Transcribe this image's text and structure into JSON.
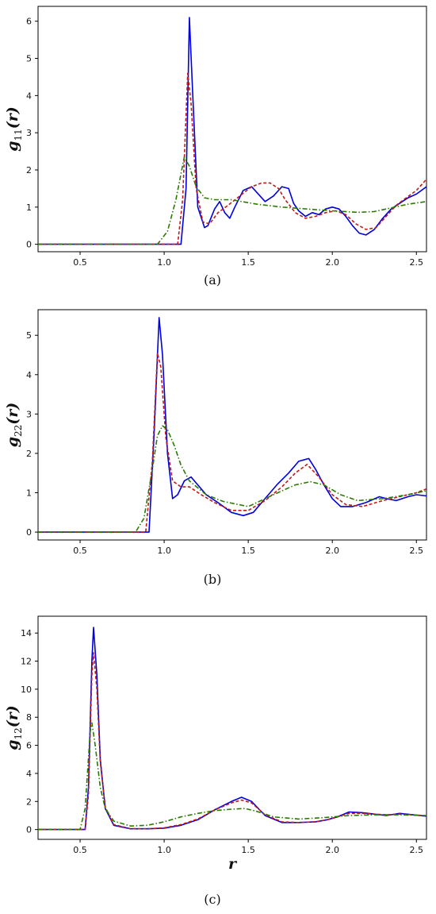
{
  "chart_data": [
    {
      "type": "line",
      "panel_label": "(a)",
      "ylabel": "g11(r)",
      "ylabel_main": "g",
      "ylabel_sub": "11",
      "ylabel_tail": "(r)",
      "xlabel": "",
      "xlim": [
        0.25,
        2.56
      ],
      "ylim": [
        -0.2,
        6.4
      ],
      "xticks": [
        0.5,
        1.0,
        1.5,
        2.0,
        2.5
      ],
      "xtick_labels": [
        "0.5",
        "1.0",
        "1.5",
        "2.0",
        "2.5"
      ],
      "yticks": [
        0,
        1,
        2,
        3,
        4,
        5,
        6
      ],
      "ytick_labels": [
        "0",
        "1",
        "2",
        "3",
        "4",
        "5",
        "6"
      ],
      "grid": false,
      "series": [
        {
          "color": "#0000dd",
          "dash": "solid",
          "x": [
            0.25,
            1.1,
            1.13,
            1.15,
            1.17,
            1.2,
            1.24,
            1.26,
            1.3,
            1.33,
            1.36,
            1.39,
            1.42,
            1.47,
            1.52,
            1.56,
            1.6,
            1.65,
            1.7,
            1.74,
            1.77,
            1.8,
            1.84,
            1.88,
            1.92,
            1.96,
            2.0,
            2.04,
            2.08,
            2.12,
            2.16,
            2.2,
            2.25,
            2.3,
            2.35,
            2.4,
            2.45,
            2.5,
            2.56
          ],
          "y": [
            0,
            0,
            1.5,
            6.1,
            4.0,
            1.0,
            0.45,
            0.5,
            0.95,
            1.15,
            0.85,
            0.7,
            1.0,
            1.45,
            1.55,
            1.35,
            1.15,
            1.3,
            1.55,
            1.5,
            1.1,
            0.9,
            0.75,
            0.85,
            0.8,
            0.95,
            1.0,
            0.95,
            0.75,
            0.5,
            0.3,
            0.25,
            0.4,
            0.7,
            0.95,
            1.1,
            1.25,
            1.35,
            1.55
          ]
        },
        {
          "color": "#c01a1a",
          "dash": "dashed",
          "x": [
            0.25,
            1.08,
            1.11,
            1.14,
            1.16,
            1.19,
            1.23,
            1.27,
            1.32,
            1.38,
            1.45,
            1.52,
            1.58,
            1.63,
            1.68,
            1.72,
            1.78,
            1.84,
            1.9,
            1.96,
            2.02,
            2.08,
            2.14,
            2.2,
            2.26,
            2.32,
            2.38,
            2.44,
            2.5,
            2.56
          ],
          "y": [
            0,
            0,
            1.2,
            4.6,
            3.8,
            1.5,
            0.6,
            0.55,
            0.85,
            1.05,
            1.3,
            1.55,
            1.65,
            1.65,
            1.5,
            1.2,
            0.85,
            0.7,
            0.75,
            0.85,
            0.9,
            0.8,
            0.55,
            0.4,
            0.45,
            0.75,
            1.05,
            1.25,
            1.45,
            1.75
          ]
        },
        {
          "color": "#2a7a00",
          "dash": "dashdot",
          "x": [
            0.25,
            0.96,
            1.02,
            1.07,
            1.12,
            1.15,
            1.19,
            1.24,
            1.3,
            1.4,
            1.55,
            1.7,
            1.85,
            2.0,
            2.15,
            2.25,
            2.35,
            2.45,
            2.56
          ],
          "y": [
            0,
            0,
            0.35,
            1.2,
            2.35,
            2.1,
            1.55,
            1.25,
            1.2,
            1.2,
            1.08,
            1.0,
            0.95,
            0.9,
            0.86,
            0.88,
            0.98,
            1.08,
            1.15
          ]
        }
      ]
    },
    {
      "type": "line",
      "panel_label": "(b)",
      "ylabel": "g22(r)",
      "ylabel_main": "g",
      "ylabel_sub": "22",
      "ylabel_tail": "(r)",
      "xlabel": "",
      "xlim": [
        0.25,
        2.56
      ],
      "ylim": [
        -0.2,
        5.65
      ],
      "xticks": [
        0.5,
        1.0,
        1.5,
        2.0,
        2.5
      ],
      "xtick_labels": [
        "0.5",
        "1.0",
        "1.5",
        "2.0",
        "2.5"
      ],
      "yticks": [
        0,
        1,
        2,
        3,
        4,
        5
      ],
      "ytick_labels": [
        "0",
        "1",
        "2",
        "3",
        "4",
        "5"
      ],
      "grid": false,
      "series": [
        {
          "color": "#0000dd",
          "dash": "solid",
          "x": [
            0.25,
            0.91,
            0.94,
            0.97,
            0.99,
            1.02,
            1.05,
            1.08,
            1.12,
            1.16,
            1.2,
            1.25,
            1.32,
            1.4,
            1.47,
            1.53,
            1.6,
            1.67,
            1.74,
            1.8,
            1.86,
            1.9,
            1.95,
            2.0,
            2.05,
            2.12,
            2.2,
            2.28,
            2.32,
            2.38,
            2.45,
            2.5,
            2.56
          ],
          "y": [
            0,
            0,
            2.5,
            5.45,
            4.5,
            2.0,
            0.85,
            0.95,
            1.3,
            1.4,
            1.2,
            0.95,
            0.75,
            0.5,
            0.42,
            0.5,
            0.85,
            1.2,
            1.5,
            1.8,
            1.87,
            1.6,
            1.2,
            0.85,
            0.65,
            0.65,
            0.75,
            0.9,
            0.85,
            0.8,
            0.9,
            0.95,
            0.92
          ]
        },
        {
          "color": "#c01a1a",
          "dash": "dashed",
          "x": [
            0.25,
            0.89,
            0.93,
            0.96,
            0.98,
            1.01,
            1.05,
            1.1,
            1.15,
            1.22,
            1.3,
            1.4,
            1.5,
            1.6,
            1.7,
            1.78,
            1.85,
            1.92,
            2.0,
            2.08,
            2.18,
            2.3,
            2.4,
            2.5,
            2.56
          ],
          "y": [
            0,
            0,
            1.8,
            4.55,
            4.2,
            2.4,
            1.3,
            1.15,
            1.15,
            0.95,
            0.75,
            0.55,
            0.55,
            0.8,
            1.15,
            1.5,
            1.72,
            1.4,
            0.95,
            0.7,
            0.65,
            0.8,
            0.9,
            1.0,
            1.1
          ]
        },
        {
          "color": "#2a7a00",
          "dash": "dashdot",
          "x": [
            0.25,
            0.83,
            0.88,
            0.93,
            0.96,
            0.99,
            1.02,
            1.06,
            1.1,
            1.15,
            1.25,
            1.35,
            1.5,
            1.65,
            1.78,
            1.87,
            1.95,
            2.05,
            2.15,
            2.3,
            2.45,
            2.56
          ],
          "y": [
            0,
            0,
            0.35,
            1.6,
            2.45,
            2.7,
            2.6,
            2.2,
            1.7,
            1.3,
            0.95,
            0.78,
            0.65,
            0.95,
            1.2,
            1.28,
            1.2,
            0.95,
            0.8,
            0.85,
            0.95,
            1.05
          ]
        }
      ]
    },
    {
      "type": "line",
      "panel_label": "(c)",
      "ylabel": "g12(r)",
      "ylabel_main": "g",
      "ylabel_sub": "12",
      "ylabel_tail": "(r)",
      "xlabel": "r",
      "xlim": [
        0.25,
        2.56
      ],
      "ylim": [
        -0.7,
        15.2
      ],
      "xticks": [
        0.5,
        1.0,
        1.5,
        2.0,
        2.5
      ],
      "xtick_labels": [
        "0.5",
        "1.0",
        "1.5",
        "2.0",
        "2.5"
      ],
      "yticks": [
        0,
        2,
        4,
        6,
        8,
        10,
        12,
        14
      ],
      "ytick_labels": [
        "0",
        "2",
        "4",
        "6",
        "8",
        "10",
        "12",
        "14"
      ],
      "grid": false,
      "series": [
        {
          "color": "#0000dd",
          "dash": "solid",
          "x": [
            0.25,
            0.53,
            0.55,
            0.57,
            0.58,
            0.6,
            0.62,
            0.65,
            0.7,
            0.8,
            0.9,
            1.0,
            1.1,
            1.2,
            1.3,
            1.4,
            1.46,
            1.52,
            1.6,
            1.7,
            1.8,
            1.9,
            1.97,
            2.03,
            2.1,
            2.18,
            2.25,
            2.32,
            2.4,
            2.48,
            2.56
          ],
          "y": [
            0,
            0,
            3.0,
            12.0,
            14.4,
            11.0,
            5.0,
            1.5,
            0.3,
            0.05,
            0.05,
            0.1,
            0.3,
            0.7,
            1.4,
            2.0,
            2.3,
            2.0,
            1.0,
            0.5,
            0.5,
            0.55,
            0.7,
            0.9,
            1.25,
            1.2,
            1.1,
            1.0,
            1.15,
            1.05,
            0.95
          ]
        },
        {
          "color": "#c01a1a",
          "dash": "dashed",
          "x": [
            0.25,
            0.53,
            0.55,
            0.57,
            0.58,
            0.6,
            0.62,
            0.65,
            0.7,
            0.8,
            0.9,
            1.0,
            1.1,
            1.2,
            1.3,
            1.4,
            1.46,
            1.52,
            1.6,
            1.7,
            1.8,
            1.9,
            1.97,
            2.03,
            2.1,
            2.18,
            2.25,
            2.32,
            2.4,
            2.48,
            2.56
          ],
          "y": [
            0,
            0,
            2.5,
            11.0,
            12.6,
            10.0,
            4.8,
            1.6,
            0.35,
            0.06,
            0.05,
            0.12,
            0.35,
            0.75,
            1.4,
            1.9,
            2.1,
            1.9,
            1.05,
            0.55,
            0.5,
            0.55,
            0.7,
            0.9,
            1.15,
            1.15,
            1.1,
            1.05,
            1.1,
            1.05,
            0.98
          ]
        },
        {
          "color": "#2a7a00",
          "dash": "dashdot",
          "x": [
            0.25,
            0.5,
            0.53,
            0.56,
            0.57,
            0.59,
            0.62,
            0.65,
            0.7,
            0.8,
            0.9,
            1.0,
            1.1,
            1.2,
            1.3,
            1.4,
            1.48,
            1.55,
            1.65,
            1.8,
            1.95,
            2.1,
            2.25,
            2.4,
            2.56
          ],
          "y": [
            0,
            0,
            1.5,
            7.0,
            7.6,
            6.0,
            3.0,
            1.5,
            0.6,
            0.25,
            0.3,
            0.55,
            0.9,
            1.15,
            1.35,
            1.45,
            1.5,
            1.3,
            0.9,
            0.75,
            0.85,
            1.0,
            1.05,
            1.05,
            1.0
          ]
        }
      ]
    }
  ]
}
